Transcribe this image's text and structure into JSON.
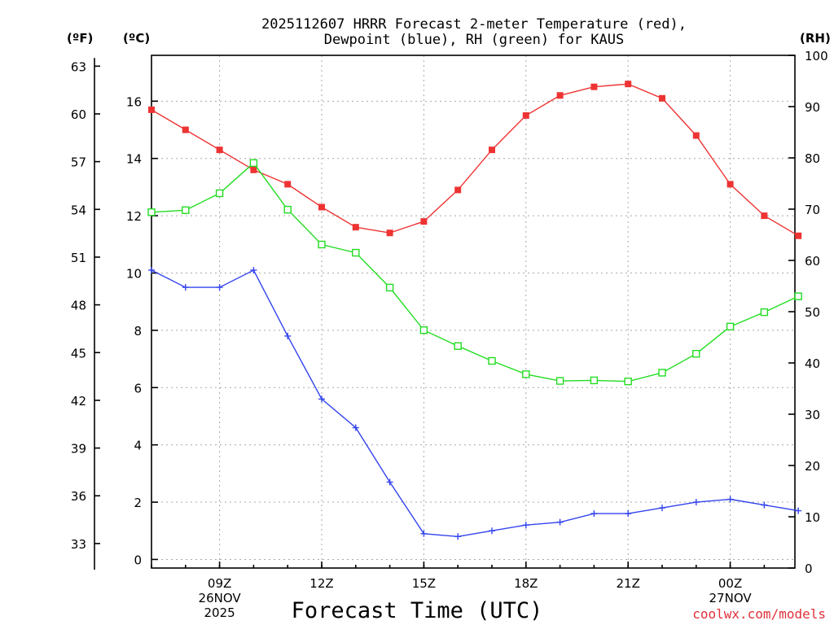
{
  "chart_data": {
    "type": "line",
    "title_line1": "2025112607 HRRR Forecast 2-meter Temperature (red),",
    "title_line2": "Dewpoint (blue), RH (green) for KAUS",
    "xlabel": "Forecast Time (UTC)",
    "credit": "coolwx.com/models",
    "units": {
      "fahrenheit": "(ºF)",
      "celsius": "(ºC)",
      "rh": "(RH)"
    },
    "x_hours": [
      7,
      8,
      9,
      10,
      11,
      12,
      13,
      14,
      15,
      16,
      17,
      18,
      19,
      20,
      21,
      22,
      23,
      24,
      25,
      26
    ],
    "xlim": [
      7,
      25.9
    ],
    "x_ticks": [
      {
        "hour": 9,
        "label": "09Z",
        "sub1": "26NOV",
        "sub2": "2025"
      },
      {
        "hour": 12,
        "label": "12Z",
        "sub1": "",
        "sub2": ""
      },
      {
        "hour": 15,
        "label": "15Z",
        "sub1": "",
        "sub2": ""
      },
      {
        "hour": 18,
        "label": "18Z",
        "sub1": "",
        "sub2": ""
      },
      {
        "hour": 21,
        "label": "21Z",
        "sub1": "",
        "sub2": ""
      },
      {
        "hour": 24,
        "label": "00Z",
        "sub1": "27NOV",
        "sub2": ""
      }
    ],
    "celsius_axis": {
      "ylim": [
        -0.3,
        17.6
      ],
      "ticks": [
        0,
        2,
        4,
        6,
        8,
        10,
        12,
        14,
        16
      ]
    },
    "fahrenheit_axis": {
      "ticks": [
        33,
        36,
        39,
        42,
        45,
        48,
        51,
        54,
        57,
        60,
        63
      ]
    },
    "rh_axis": {
      "ylim": [
        0,
        100
      ],
      "ticks": [
        0,
        10,
        20,
        30,
        40,
        50,
        60,
        70,
        80,
        90,
        100
      ]
    },
    "series": [
      {
        "name": "Temperature",
        "axis": "celsius",
        "color": "#ee3333",
        "marker": "filled-square",
        "values": [
          15.7,
          15.0,
          14.3,
          13.6,
          13.1,
          12.3,
          11.6,
          11.4,
          11.8,
          12.9,
          14.3,
          15.5,
          16.2,
          16.5,
          16.6,
          16.1,
          14.8,
          13.1,
          12.0,
          11.3
        ]
      },
      {
        "name": "Dewpoint",
        "axis": "celsius",
        "color": "#3344ee",
        "marker": "plus",
        "values": [
          10.1,
          9.5,
          9.5,
          10.1,
          7.8,
          5.6,
          4.6,
          2.7,
          0.9,
          0.8,
          1.0,
          1.2,
          1.3,
          1.6,
          1.6,
          1.8,
          2.0,
          2.1,
          1.9,
          1.7
        ]
      },
      {
        "name": "RH",
        "axis": "rh",
        "color": "#22dd22",
        "marker": "open-square",
        "values": [
          69.4,
          69.8,
          73.1,
          79.0,
          69.9,
          63.1,
          61.5,
          54.7,
          46.4,
          43.3,
          40.4,
          37.8,
          36.5,
          36.6,
          36.4,
          38.1,
          41.8,
          47.1,
          49.9,
          53.0
        ]
      }
    ]
  }
}
